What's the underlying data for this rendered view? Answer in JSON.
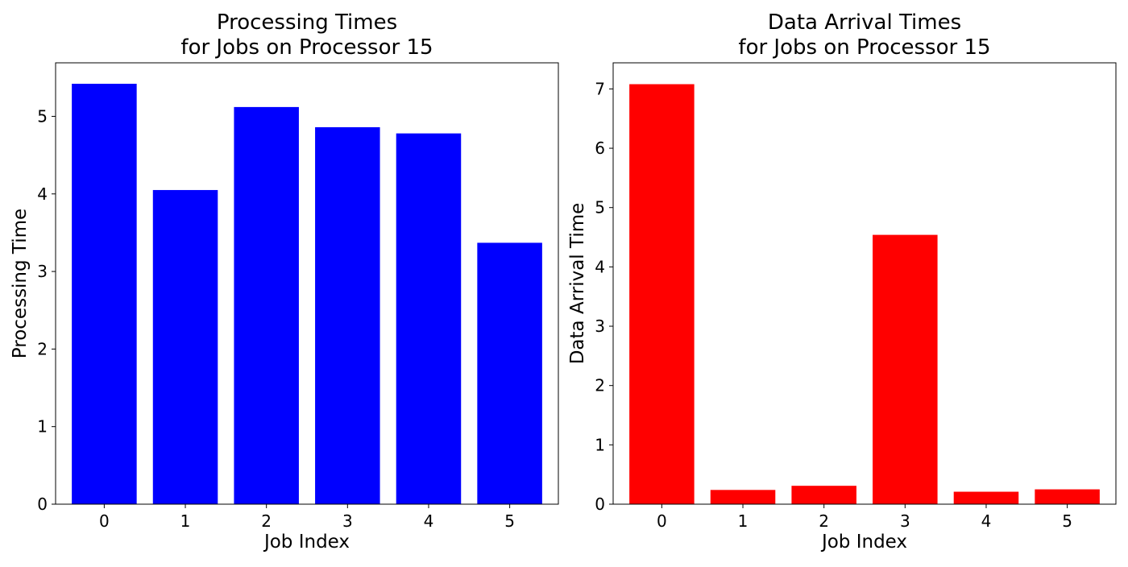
{
  "chart_data": [
    {
      "type": "bar",
      "title": [
        "Processing Times",
        "for Jobs on Processor 15"
      ],
      "xlabel": "Job Index",
      "ylabel": "Processing Time",
      "categories": [
        "0",
        "1",
        "2",
        "3",
        "4",
        "5"
      ],
      "values": [
        5.42,
        4.05,
        5.12,
        4.86,
        4.78,
        3.37
      ],
      "ylim": [
        0,
        5.69
      ],
      "yticks": [
        0,
        1,
        2,
        3,
        4,
        5
      ],
      "color": "#0000ff",
      "grid": false,
      "legend": "none"
    },
    {
      "type": "bar",
      "title": [
        "Data Arrival Times",
        "for Jobs on Processor 15"
      ],
      "xlabel": "Job Index",
      "ylabel": "Data Arrival Time",
      "categories": [
        "0",
        "1",
        "2",
        "3",
        "4",
        "5"
      ],
      "values": [
        7.08,
        0.24,
        0.31,
        4.54,
        0.21,
        0.25
      ],
      "ylim": [
        0,
        7.44
      ],
      "yticks": [
        0,
        1,
        2,
        3,
        4,
        5,
        6,
        7
      ],
      "color": "#ff0000",
      "grid": false,
      "legend": "none"
    }
  ]
}
